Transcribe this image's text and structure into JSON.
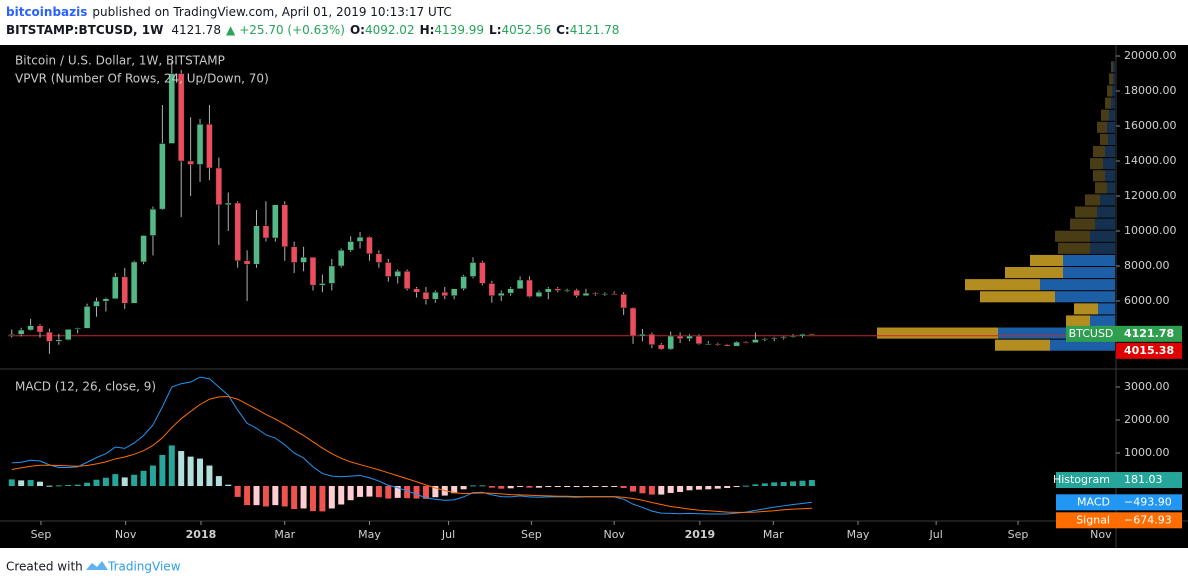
{
  "header": {
    "author": "bitcoinbazis",
    "published": "published on TradingView.com, April 01, 2019 10:13:17 UTC",
    "symbol": "BITSTAMP:BTCUSD, 1W",
    "arrow": "▲",
    "change": "+25.70 (+0.63%)",
    "o_label": "O:",
    "h_label": "H:",
    "l_label": "L:",
    "c_label": "C:"
  },
  "footer": {
    "created": "Created with",
    "brand": "TradingView"
  },
  "chart_data": [
    {
      "type": "candlestick",
      "title": "Bitcoin / U.S. Dollar, 1W, BITSTAMP",
      "up_color": "#53b987",
      "down_color": "#eb4d5c",
      "ylim": [
        2170,
        20630
      ],
      "yticks": [
        {
          "value": 6000,
          "label": "6000.00"
        },
        {
          "value": 8000,
          "label": "8000.00"
        },
        {
          "value": 10000,
          "label": "10000.00"
        },
        {
          "value": 12000,
          "label": "12000.00"
        },
        {
          "value": 14000,
          "label": "14000.00"
        },
        {
          "value": 16000,
          "label": "16000.00"
        },
        {
          "value": 18000,
          "label": "18000.00"
        },
        {
          "value": 20000,
          "label": "20000.00"
        }
      ],
      "x": [
        0,
        1,
        2,
        3,
        4,
        5,
        6,
        7,
        8,
        9,
        10,
        11,
        12,
        13,
        14,
        15,
        16,
        17,
        18,
        19,
        20,
        21,
        22,
        23,
        24,
        25,
        26,
        27,
        28,
        29,
        30,
        31,
        32,
        33,
        34,
        35,
        36,
        37,
        38,
        39,
        40,
        41,
        42,
        43,
        44,
        45,
        46,
        47,
        48,
        49,
        50,
        51,
        52,
        53,
        54,
        55,
        56,
        57,
        58,
        59,
        60,
        61,
        62,
        63,
        64,
        65,
        66,
        67,
        68,
        69,
        70,
        71,
        72,
        73,
        74,
        75,
        76,
        77,
        78,
        79,
        80,
        81,
        82,
        83,
        84,
        85
      ],
      "open": [
        4060,
        4090,
        4340,
        4590,
        4220,
        3690,
        3780,
        4380,
        4440,
        5690,
        5990,
        6130,
        7380,
        5870,
        8230,
        9740,
        11250,
        15000,
        19000,
        14000,
        13800,
        16100,
        13600,
        11500,
        11600,
        8300,
        8100,
        10300,
        9600,
        11500,
        9100,
        8200,
        8500,
        6900,
        7000,
        8000,
        8900,
        9400,
        9650,
        8700,
        8200,
        7400,
        7700,
        6700,
        6500,
        6100,
        6500,
        6300,
        6700,
        7400,
        8200,
        7000,
        6300,
        6450,
        6700,
        7200,
        6250,
        6500,
        6700,
        6600,
        6620,
        6300,
        6450,
        6400,
        6420,
        6380,
        5600,
        4000,
        4100,
        3500,
        3250,
        4000,
        3850,
        4000,
        3550,
        3560,
        3500,
        3420,
        3650,
        3620,
        3800,
        3850,
        3900,
        3950,
        4000,
        4092.02
      ],
      "high": [
        4370,
        4470,
        4980,
        4680,
        4420,
        4120,
        4400,
        4470,
        5850,
        6190,
        6190,
        7600,
        7890,
        8300,
        9760,
        11400,
        17200,
        19700,
        19200,
        16500,
        16400,
        17200,
        14200,
        12200,
        11700,
        8900,
        11200,
        11700,
        11500,
        11700,
        9400,
        9100,
        8500,
        7500,
        8400,
        9000,
        9700,
        9950,
        9700,
        8900,
        8400,
        7800,
        7800,
        6800,
        6800,
        6600,
        6800,
        6700,
        7500,
        8500,
        8300,
        7150,
        6600,
        6800,
        7400,
        7400,
        6600,
        6800,
        6800,
        6700,
        6700,
        6700,
        6500,
        6500,
        6550,
        6500,
        5640,
        4400,
        4200,
        3600,
        4250,
        4200,
        4100,
        4100,
        3700,
        3620,
        3550,
        3700,
        3700,
        4200,
        3900,
        3950,
        4000,
        4100,
        4130,
        4139.99
      ],
      "low": [
        3920,
        3970,
        4300,
        3900,
        2980,
        3500,
        3750,
        4150,
        4420,
        5100,
        5400,
        6100,
        5550,
        5860,
        8100,
        8600,
        11200,
        15000,
        10800,
        12000,
        12800,
        12900,
        9200,
        10000,
        7900,
        6000,
        7900,
        9400,
        9400,
        8300,
        7600,
        7700,
        6600,
        6500,
        6600,
        7900,
        8800,
        9000,
        8300,
        7900,
        7100,
        7000,
        6600,
        6200,
        5800,
        5900,
        6100,
        6100,
        6600,
        7300,
        6900,
        5900,
        6000,
        6300,
        6700,
        6200,
        6200,
        6100,
        6500,
        6500,
        6200,
        6300,
        6300,
        6300,
        6350,
        5200,
        3550,
        3700,
        3300,
        3200,
        3200,
        3600,
        3700,
        3500,
        3500,
        3450,
        3400,
        3400,
        3570,
        3600,
        3700,
        3700,
        3800,
        3900,
        3900,
        4052.56
      ],
      "close": [
        4090,
        4340,
        4590,
        4220,
        3690,
        3780,
        4380,
        4440,
        5690,
        5990,
        6130,
        7380,
        5870,
        8230,
        9740,
        11250,
        15000,
        19000,
        14000,
        13800,
        16100,
        13600,
        11500,
        11600,
        8300,
        8100,
        10300,
        9600,
        11500,
        9100,
        8200,
        8500,
        6900,
        7000,
        8000,
        8900,
        9400,
        9650,
        8700,
        8200,
        7400,
        7700,
        6700,
        6500,
        6100,
        6500,
        6300,
        6700,
        7400,
        8200,
        7000,
        6300,
        6450,
        6700,
        7200,
        6250,
        6500,
        6700,
        6600,
        6620,
        6300,
        6450,
        6400,
        6420,
        6380,
        5600,
        4000,
        4100,
        3500,
        3250,
        4000,
        3850,
        4000,
        3550,
        3560,
        3500,
        3420,
        3650,
        3620,
        3800,
        3850,
        3900,
        3950,
        4000,
        4096.08,
        4121.78
      ],
      "last_price_label": "BTCUSD",
      "volume_profile": {
        "title": "VPVR (Number Of Rows, 24, Up/Down, 70)",
        "value_area_percent": 70,
        "price_range": [
          3100,
          19700
        ],
        "volume_lim": [
          0,
          250
        ],
        "up_color": "#1d5fa6",
        "down_color": "#b38d1f",
        "outside_up_color": "#16314f",
        "outside_down_color": "#4a3c14",
        "up_volume": [
          65,
          117,
          25,
          17,
          60,
          75,
          52,
          52,
          25,
          25,
          20,
          18,
          15,
          8,
          10,
          12,
          10,
          7,
          8,
          6,
          4,
          3,
          2,
          2
        ],
        "down_volume": [
          55,
          121,
          24,
          24,
          75,
          75,
          58,
          33,
          32,
          35,
          25,
          22,
          15,
          12,
          12,
          13,
          12,
          8,
          10,
          8,
          6,
          5,
          4,
          2
        ],
        "poc": 4015.38,
        "poc_color": "#c62828"
      }
    },
    {
      "type": "macd",
      "title": "MACD (12, 26, close, 9)",
      "xlim": [
        -0.4,
        117.2
      ],
      "xticks": [
        {
          "value": 3.1,
          "label": "Sep"
        },
        {
          "value": 12.1,
          "label": "Nov"
        },
        {
          "value": 20.1,
          "label": "2018"
        },
        {
          "value": 29,
          "label": "Mar"
        },
        {
          "value": 38,
          "label": "May"
        },
        {
          "value": 46.4,
          "label": "Jul"
        },
        {
          "value": 55.2,
          "label": "Sep"
        },
        {
          "value": 64,
          "label": "Nov"
        },
        {
          "value": 73.1,
          "label": "2019"
        },
        {
          "value": 80.9,
          "label": "Mar"
        },
        {
          "value": 89.9,
          "label": "May"
        },
        {
          "value": 98.2,
          "label": "Jul"
        },
        {
          "value": 106.9,
          "label": "Sep"
        },
        {
          "value": 115.7,
          "label": "Nov"
        }
      ],
      "ylim": [
        -1030,
        3515
      ],
      "yticks": [
        {
          "value": 1000,
          "label": "1000.00"
        },
        {
          "value": 2000,
          "label": "2000.00"
        },
        {
          "value": 3000,
          "label": "3000.00"
        }
      ],
      "histogram": {
        "name": "Histogram",
        "color": "#26a69a",
        "colors": [
          "#26a69a",
          "#b2dfdb",
          "#ef5350",
          "#ffcdd2"
        ],
        "values": [
          200,
          170,
          180,
          130,
          10,
          20,
          30,
          40,
          100,
          190,
          250,
          360,
          260,
          340,
          460,
          620,
          940,
          1230,
          1060,
          890,
          830,
          620,
          300,
          40,
          -330,
          -580,
          -580,
          -620,
          -580,
          -620,
          -700,
          -680,
          -760,
          -770,
          -680,
          -560,
          -430,
          -330,
          -320,
          -340,
          -380,
          -360,
          -370,
          -380,
          -390,
          -340,
          -290,
          -220,
          -100,
          20,
          20,
          -50,
          -80,
          -70,
          -30,
          -50,
          -50,
          -30,
          -20,
          -20,
          -20,
          -10,
          -10,
          -10,
          -10,
          -60,
          -170,
          -220,
          -260,
          -260,
          -210,
          -180,
          -130,
          -110,
          -100,
          -80,
          -60,
          -20,
          10,
          50,
          80,
          110,
          120,
          140,
          160,
          181.03
        ]
      },
      "series": [
        {
          "name": "MACD",
          "color": "#2196f3",
          "last_label": "−493.90",
          "values": [
            700,
            720,
            780,
            760,
            640,
            560,
            560,
            580,
            720,
            860,
            980,
            1180,
            1140,
            1300,
            1530,
            1850,
            2400,
            3000,
            3100,
            3150,
            3300,
            3250,
            3000,
            2750,
            2300,
            1900,
            1750,
            1550,
            1450,
            1250,
            1000,
            850,
            580,
            380,
            300,
            280,
            300,
            320,
            250,
            150,
            20,
            -50,
            -150,
            -250,
            -360,
            -400,
            -430,
            -420,
            -330,
            -200,
            -190,
            -270,
            -320,
            -330,
            -300,
            -330,
            -340,
            -330,
            -330,
            -330,
            -340,
            -330,
            -330,
            -330,
            -330,
            -400,
            -550,
            -650,
            -760,
            -820,
            -830,
            -840,
            -830,
            -840,
            -850,
            -850,
            -850,
            -820,
            -790,
            -740,
            -690,
            -640,
            -600,
            -560,
            -530,
            -493.9
          ]
        },
        {
          "name": "Signal",
          "color": "#ff6d00",
          "last_label": "−674.93",
          "values": [
            500,
            550,
            600,
            630,
            630,
            620,
            610,
            600,
            620,
            670,
            730,
            820,
            880,
            960,
            1070,
            1230,
            1460,
            1770,
            2040,
            2260,
            2470,
            2630,
            2700,
            2710,
            2630,
            2480,
            2330,
            2170,
            2030,
            1870,
            1700,
            1530,
            1340,
            1150,
            980,
            840,
            730,
            650,
            570,
            490,
            400,
            310,
            220,
            130,
            30,
            -60,
            -140,
            -200,
            -230,
            -220,
            -210,
            -220,
            -240,
            -260,
            -270,
            -280,
            -290,
            -300,
            -310,
            -310,
            -320,
            -320,
            -320,
            -320,
            -320,
            -340,
            -380,
            -430,
            -500,
            -560,
            -620,
            -660,
            -700,
            -730,
            -750,
            -770,
            -790,
            -800,
            -800,
            -790,
            -770,
            -750,
            -720,
            -700,
            -690,
            -674.93
          ]
        }
      ]
    }
  ]
}
